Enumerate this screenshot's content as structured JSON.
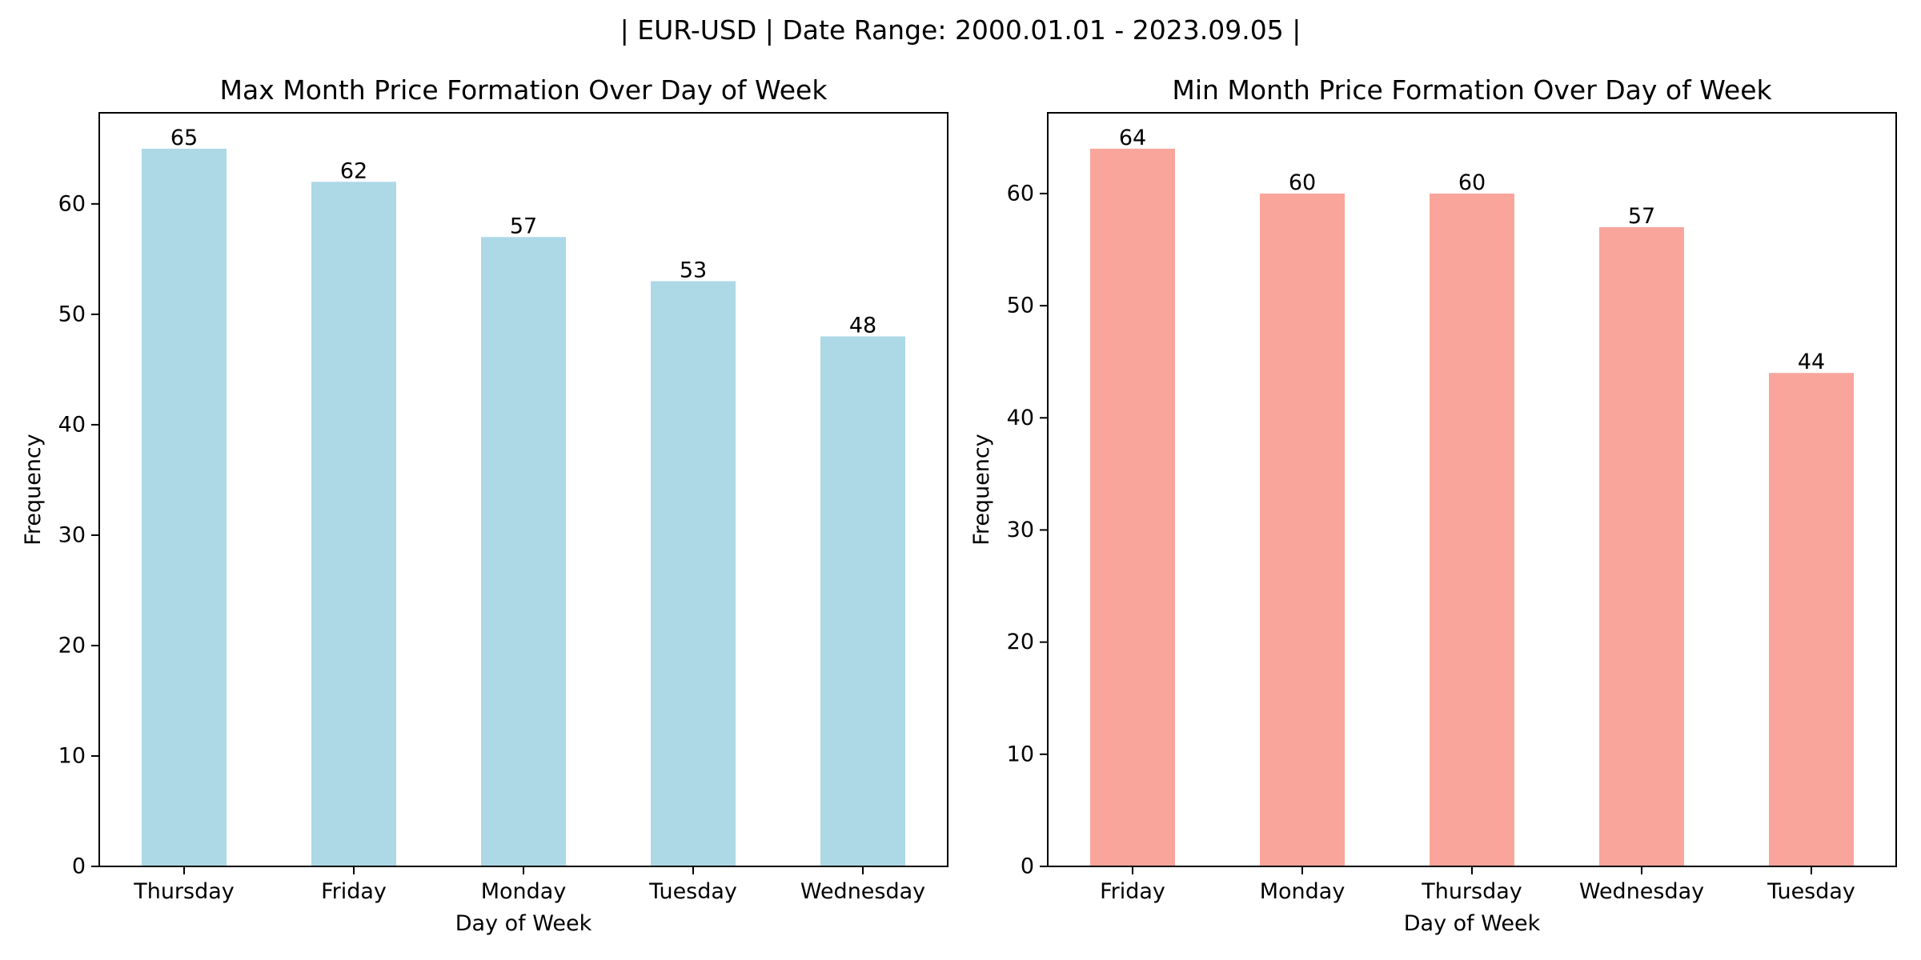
{
  "figure": {
    "suptitle": "| EUR-USD | Date Range: 2000.01.01 - 2023.09.05 |"
  },
  "chart_data": [
    {
      "type": "bar",
      "title": "Max Month Price Formation Over Day of Week",
      "xlabel": "Day of Week",
      "ylabel": "Frequency",
      "categories": [
        "Thursday",
        "Friday",
        "Monday",
        "Tuesday",
        "Wednesday"
      ],
      "values": [
        65,
        62,
        57,
        53,
        48
      ],
      "ylim": [
        0,
        68.25
      ],
      "yticks": [
        0,
        10,
        20,
        30,
        40,
        50,
        60
      ],
      "bar_color": "#add8e6",
      "data_labels": true,
      "grid": false
    },
    {
      "type": "bar",
      "title": "Min Month Price Formation Over Day of Week",
      "xlabel": "Day of Week",
      "ylabel": "Frequency",
      "categories": [
        "Friday",
        "Monday",
        "Thursday",
        "Wednesday",
        "Tuesday"
      ],
      "values": [
        64,
        60,
        60,
        57,
        44
      ],
      "ylim": [
        0,
        67.2
      ],
      "yticks": [
        0,
        10,
        20,
        30,
        40,
        50,
        60
      ],
      "bar_color": "#f9a59b",
      "data_labels": true,
      "grid": false
    }
  ]
}
